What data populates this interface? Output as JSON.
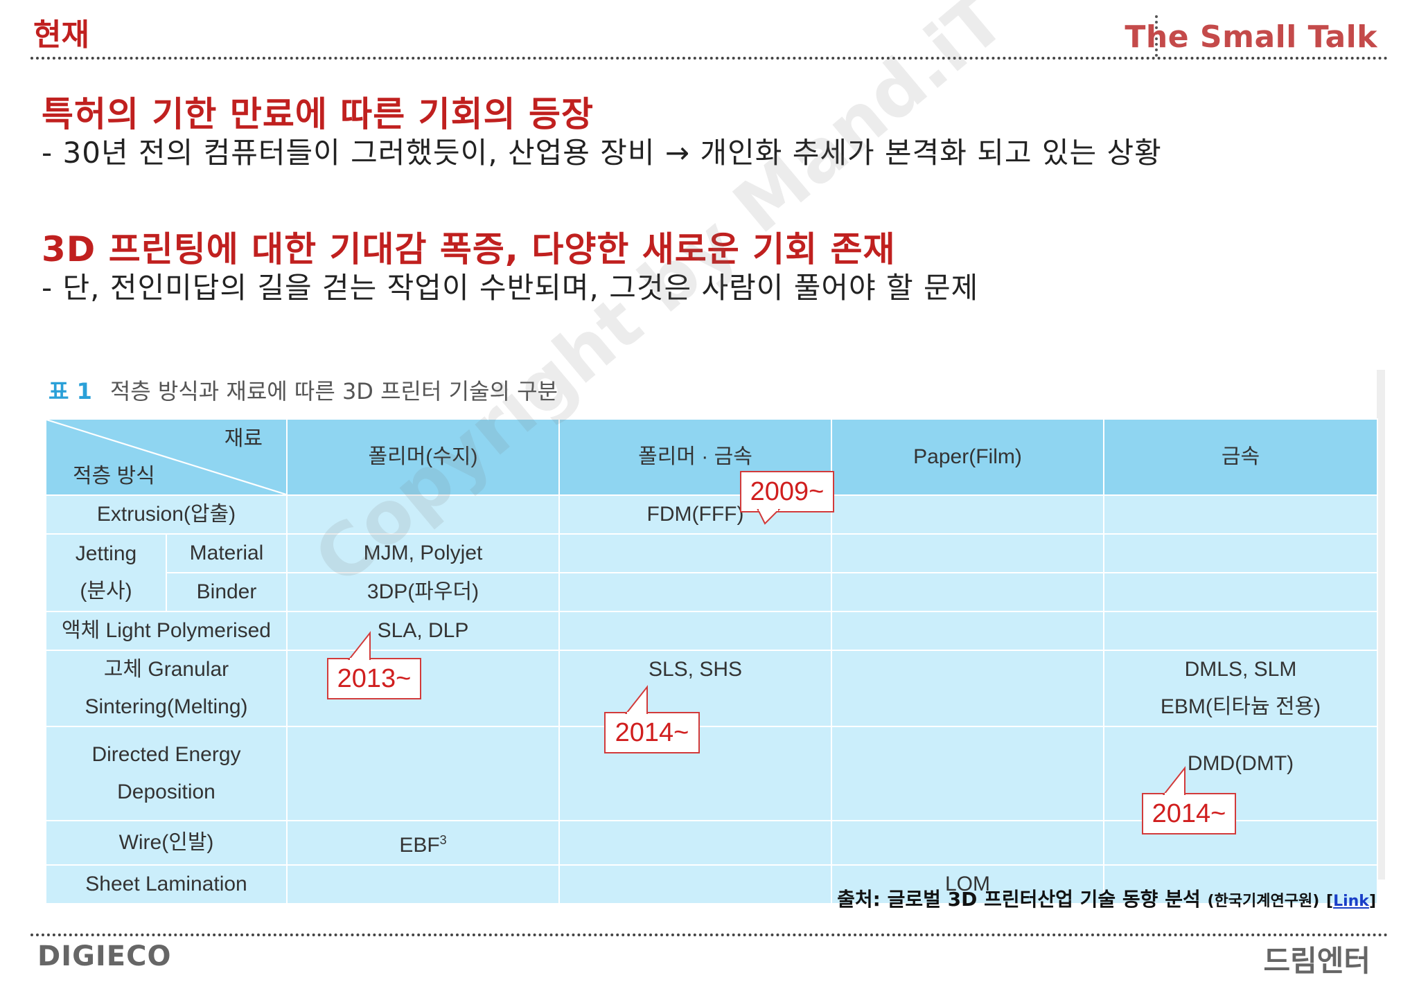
{
  "header": {
    "section_label": "현재",
    "brand_title": "The Small Talk"
  },
  "sections": [
    {
      "heading": "특허의 기한 만료에 따른 기회의 등장",
      "bullet": "- 30년 전의 컴퓨터들이 그러했듯이, 산업용 장비 → 개인화 추세가 본격화 되고 있는 상황"
    },
    {
      "heading": "3D 프린팅에 대한 기대감 폭증, 다양한 새로운 기회 존재",
      "bullet": "- 단, 전인미답의 길을 걷는 작업이 수반되며, 그것은 사람이 풀어야 할 문제"
    }
  ],
  "table": {
    "caption_num": "표 1",
    "caption_text": "적층 방식과 재료에 따른 3D 프린터 기술의 구분",
    "corner_top": "재료",
    "corner_bottom": "적층 방식",
    "columns": [
      "폴리머(수지)",
      "폴리머 · 금속",
      "Paper(Film)",
      "금속"
    ],
    "rows": {
      "extrusion": "Extrusion(압출)",
      "jetting": "Jetting",
      "jetting_sub": "(분사)",
      "material": "Material",
      "binder": "Binder",
      "liquid": "액체 Light Polymerised",
      "granular_1": "고체 Granular",
      "granular_2": "Sintering(Melting)",
      "ded_1": "Directed Energy",
      "ded_2": "Deposition",
      "wire": "Wire(인발)",
      "sheet": "Sheet Lamination"
    },
    "cells": {
      "fdm": "FDM(FFF)",
      "mjm": "MJM, Polyjet",
      "3dp": "3DP(파우더)",
      "sla": "SLA, DLP",
      "sls": "SLS, SHS",
      "dmls": "DMLS, SLM",
      "ebm": "EBM(티타늄 전용)",
      "dmd": "DMD(DMT)",
      "ebf": "EBF",
      "ebf_sup": "3",
      "lom": "LOM"
    }
  },
  "callouts": {
    "fdm_year": "2009~",
    "sla_year": "2013~",
    "sls_year": "2014~",
    "dmd_year": "2014~"
  },
  "footer": {
    "source_label": "출처: 글로벌 3D 프린터산업 기술 동향 분석",
    "source_org": "(한국기계연구원)",
    "link_open": "[",
    "link_text": "Link",
    "link_close": "]",
    "logo_left": "DIGIECO",
    "logo_right": "드림엔터"
  },
  "watermark": "Copyright by Mand.iT",
  "colors": {
    "accent_red": "#c0201f",
    "table_header": "#8fd5f1",
    "table_body": "#cbeefb",
    "callout_border": "#d23a3a"
  }
}
